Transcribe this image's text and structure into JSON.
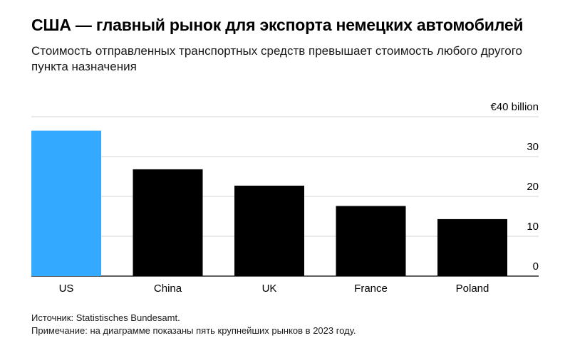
{
  "header": {
    "title": "США — главный рынок для экспорта немецких автомобилей",
    "subtitle": "Стоимость отправленных транспортных средств превышает стоимость любого другого пункта назначения"
  },
  "footer": {
    "source": "Источник: Statistisches Bundesamt.",
    "note": "Примечание: на диаграмме показаны пять крупнейших рынков в 2023 году."
  },
  "colors": {
    "highlight": "#33aaff",
    "bar": "#000000",
    "grid": "#d4d4d4"
  },
  "chart_data": {
    "type": "bar",
    "categories": [
      "US",
      "China",
      "UK",
      "France",
      "Poland"
    ],
    "values": [
      36.5,
      26.8,
      22.7,
      17.6,
      14.3
    ],
    "highlighted_category": "US",
    "ylim": [
      0,
      40
    ],
    "yticks": [
      0,
      10,
      20,
      30,
      40
    ],
    "ytick_labels": [
      "0",
      "10",
      "20",
      "30",
      "€40 billion"
    ],
    "y_axis_side": "right",
    "grid": true
  }
}
